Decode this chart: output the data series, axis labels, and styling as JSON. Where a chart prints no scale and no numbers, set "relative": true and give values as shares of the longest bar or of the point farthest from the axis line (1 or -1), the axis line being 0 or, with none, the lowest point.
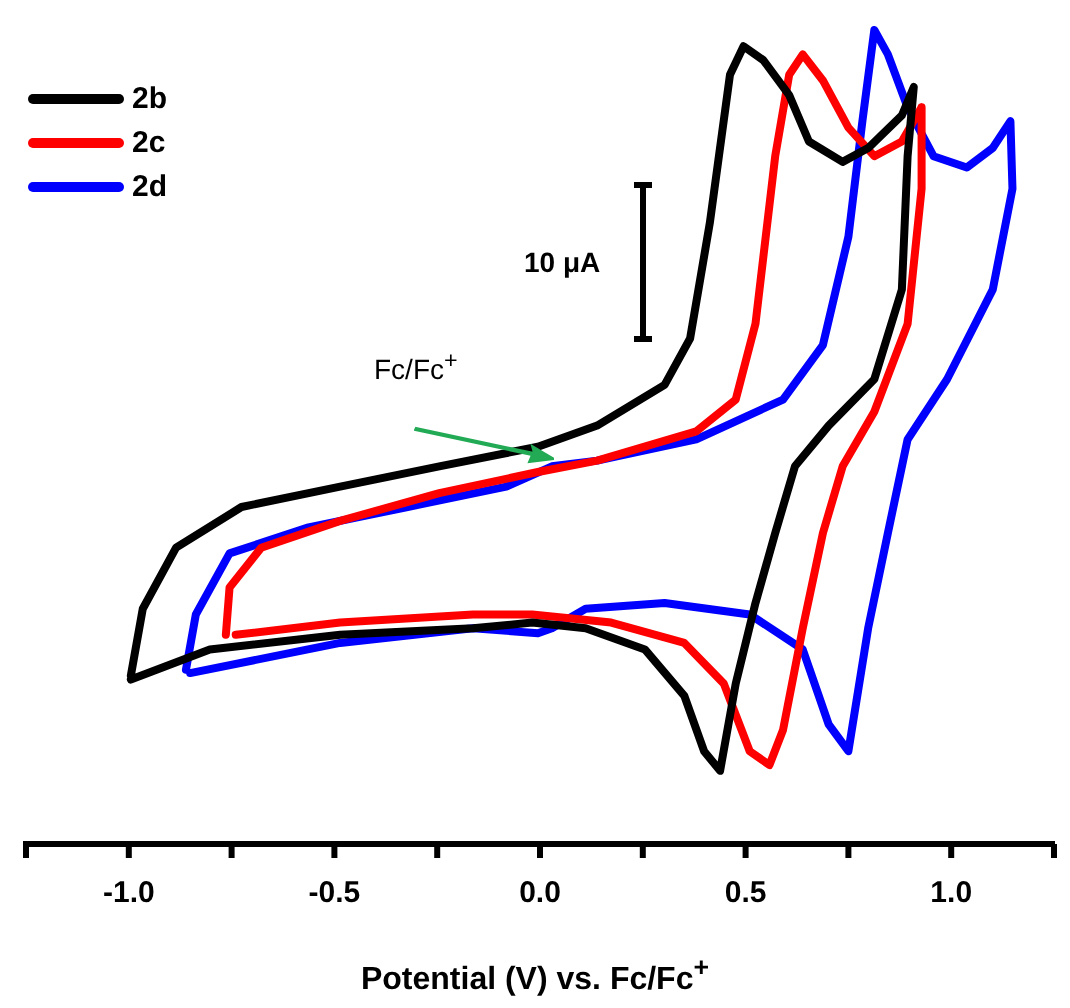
{
  "chart_data": {
    "type": "line",
    "relative": true,
    "xlabel": "Potential (V) vs. Fc/Fc$^{+}$",
    "legend": "top left",
    "xlim": [
      -1.25,
      1.25
    ],
    "xticks": [
      {
        "value": -1.25,
        "label": null
      },
      {
        "value": -1.0,
        "label": "-1.0"
      },
      {
        "value": -0.75,
        "label": null
      },
      {
        "value": -0.5,
        "label": "-0.5"
      },
      {
        "value": -0.25,
        "label": null
      },
      {
        "value": 0.0,
        "label": "0.0"
      },
      {
        "value": 0.25,
        "label": null
      },
      {
        "value": 0.5,
        "label": "0.5"
      },
      {
        "value": 0.75,
        "label": null
      },
      {
        "value": 1.0,
        "label": "1.0"
      },
      {
        "value": 1.25,
        "label": null
      }
    ],
    "annotations": [
      "10 μA",
      "Fc/Fc$^{+}$"
    ],
    "series": [
      {
        "name": "2b",
        "color": "#000000",
        "x": [
          -0.995,
          -0.966,
          -0.885,
          -0.726,
          -0.486,
          -0.245,
          -0.005,
          0.139,
          0.303,
          0.365,
          0.413,
          0.462,
          0.495,
          0.543,
          0.606,
          0.654,
          0.736,
          0.798,
          0.88,
          0.909,
          0.894,
          0.88,
          0.813,
          0.702,
          0.62,
          0.572,
          0.524,
          0.476,
          0.438,
          0.399,
          0.351,
          0.255,
          0.111,
          -0.019,
          -0.163,
          -0.486,
          -0.803,
          -0.995
        ],
        "values": [
          0.207,
          0.289,
          0.364,
          0.414,
          0.439,
          0.464,
          0.488,
          0.514,
          0.564,
          0.621,
          0.763,
          0.945,
          0.98,
          0.963,
          0.92,
          0.863,
          0.838,
          0.855,
          0.895,
          0.93,
          0.845,
          0.681,
          0.571,
          0.514,
          0.464,
          0.382,
          0.296,
          0.197,
          0.09,
          0.114,
          0.182,
          0.239,
          0.265,
          0.272,
          0.265,
          0.257,
          0.239,
          0.202
        ]
      },
      {
        "name": "2c",
        "color": "#ff0000",
        "x": [
          -0.764,
          -0.755,
          -0.678,
          -0.486,
          -0.245,
          -0.005,
          0.139,
          0.38,
          0.476,
          0.524,
          0.572,
          0.606,
          0.639,
          0.688,
          0.75,
          0.813,
          0.88,
          0.928,
          0.928,
          0.894,
          0.813,
          0.736,
          0.688,
          0.639,
          0.591,
          0.558,
          0.51,
          0.447,
          0.351,
          0.173,
          -0.019,
          -0.163,
          -0.486,
          -0.74
        ],
        "values": [
          0.257,
          0.315,
          0.364,
          0.397,
          0.431,
          0.457,
          0.471,
          0.507,
          0.546,
          0.639,
          0.845,
          0.945,
          0.97,
          0.938,
          0.88,
          0.845,
          0.863,
          0.905,
          0.805,
          0.639,
          0.531,
          0.464,
          0.382,
          0.265,
          0.14,
          0.097,
          0.114,
          0.197,
          0.247,
          0.272,
          0.282,
          0.282,
          0.272,
          0.257
        ]
      },
      {
        "name": "2d",
        "color": "#0000ff",
        "x": [
          -0.861,
          -0.837,
          -0.755,
          -0.563,
          -0.322,
          -0.082,
          0.029,
          0.139,
          0.38,
          0.591,
          0.688,
          0.75,
          0.784,
          0.813,
          0.846,
          0.894,
          0.957,
          1.038,
          1.101,
          1.144,
          1.149,
          1.101,
          0.99,
          0.894,
          0.846,
          0.798,
          0.75,
          0.702,
          0.639,
          0.51,
          0.303,
          0.111,
          0.029,
          -0.005,
          -0.163,
          -0.486,
          -0.851
        ],
        "values": [
          0.214,
          0.282,
          0.357,
          0.389,
          0.414,
          0.439,
          0.464,
          0.471,
          0.497,
          0.546,
          0.613,
          0.746,
          0.888,
          1.0,
          0.97,
          0.905,
          0.845,
          0.831,
          0.855,
          0.888,
          0.805,
          0.681,
          0.571,
          0.497,
          0.382,
          0.265,
          0.114,
          0.147,
          0.239,
          0.282,
          0.296,
          0.289,
          0.265,
          0.259,
          0.265,
          0.247,
          0.21
        ]
      }
    ]
  }
}
